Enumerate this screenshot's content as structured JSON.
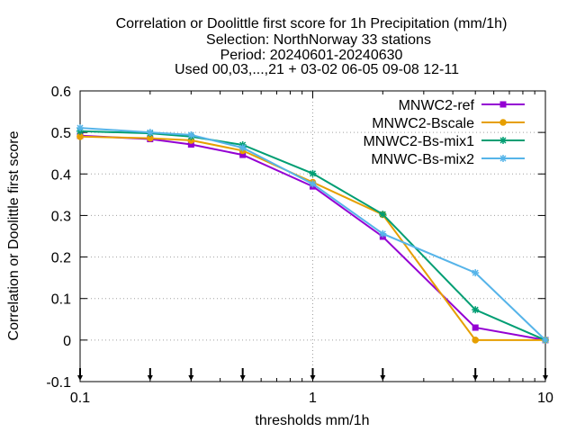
{
  "chart_data": {
    "type": "line",
    "title_lines": [
      "Correlation or Doolittle first score  for 1h Precipitation (mm/1h)",
      "Selection: NorthNorway      33 stations",
      "Period: 20240601-20240630",
      "Used 00,03,...,21 + 03-02 06-05 09-08 12-11"
    ],
    "xlabel": "thresholds mm/1h",
    "ylabel": "Correlation or Doolittle first score",
    "xscale": "log",
    "xlim": [
      0.1,
      10
    ],
    "ylim": [
      -0.1,
      0.6
    ],
    "x_ticks": [
      0.1,
      1,
      10
    ],
    "x_tick_labels": [
      "0.1",
      "1",
      "10"
    ],
    "y_ticks": [
      -0.1,
      0,
      0.1,
      0.2,
      0.3,
      0.4,
      0.5,
      0.6
    ],
    "y_tick_labels": [
      "-0.1",
      "0",
      "0.1",
      "0.2",
      "0.3",
      "0.4",
      "0.5",
      "0.6"
    ],
    "grid": true,
    "legend_position": "top-right",
    "threshold_markers": [
      0.1,
      0.2,
      0.3,
      0.5,
      1,
      2,
      5,
      10
    ],
    "x": [
      0.1,
      0.2,
      0.3,
      0.5,
      1,
      2,
      5,
      10
    ],
    "series": [
      {
        "name": "MNWC2-ref",
        "color": "#9400d3",
        "marker": "filled-square",
        "values": [
          0.492,
          0.484,
          0.471,
          0.446,
          0.37,
          0.249,
          0.03,
          0.0
        ]
      },
      {
        "name": "MNWC2-Bscale",
        "color": "#e69f00",
        "marker": "filled-circle",
        "values": [
          0.49,
          0.486,
          0.481,
          0.456,
          0.38,
          0.302,
          0.0,
          0.0
        ]
      },
      {
        "name": "MNWC2-Bs-mix1",
        "color": "#009e73",
        "marker": "star",
        "values": [
          0.503,
          0.498,
          0.49,
          0.47,
          0.401,
          0.303,
          0.073,
          0.0
        ]
      },
      {
        "name": "MNWC-Bs-mix2",
        "color": "#56b4e9",
        "marker": "star",
        "values": [
          0.511,
          0.5,
          0.494,
          0.463,
          0.376,
          0.256,
          0.162,
          0.0
        ]
      }
    ]
  }
}
